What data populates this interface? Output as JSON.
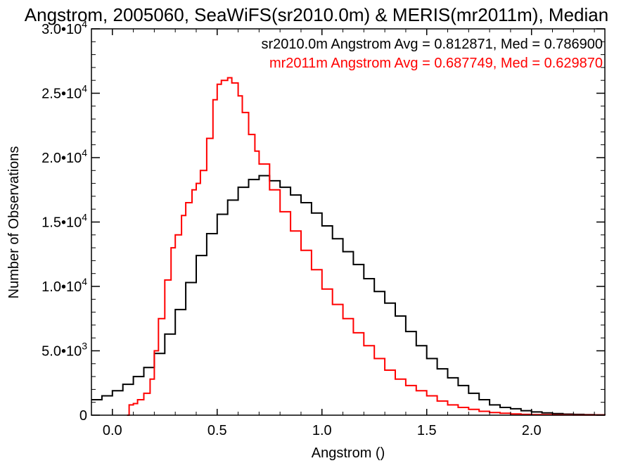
{
  "chart_data": {
    "type": "line",
    "title": "Angstrom, 2005060, SeaWiFS(sr2010.0m) & MERIS(mr2011m), Median",
    "xlabel": "Angstrom ()",
    "ylabel": "Number of Observations",
    "xlim": [
      -0.1,
      2.35
    ],
    "ylim": [
      0,
      30000
    ],
    "x_ticks": [
      {
        "value": 0.0,
        "label": "0.0"
      },
      {
        "value": 0.5,
        "label": "0.5"
      },
      {
        "value": 1.0,
        "label": "1.0"
      },
      {
        "value": 1.5,
        "label": "1.5"
      },
      {
        "value": 2.0,
        "label": "2.0"
      }
    ],
    "y_ticks": [
      {
        "value": 0,
        "mantissa": "0",
        "exponent": ""
      },
      {
        "value": 5000,
        "mantissa": "5.0•10",
        "exponent": "3"
      },
      {
        "value": 10000,
        "mantissa": "1.0•10",
        "exponent": "4"
      },
      {
        "value": 15000,
        "mantissa": "1.5•10",
        "exponent": "4"
      },
      {
        "value": 20000,
        "mantissa": "2.0•10",
        "exponent": "4"
      },
      {
        "value": 25000,
        "mantissa": "2.5•10",
        "exponent": "4"
      },
      {
        "value": 30000,
        "mantissa": "3.0•10",
        "exponent": "4"
      }
    ],
    "grid": false,
    "legend_position": "top-right",
    "series": [
      {
        "name": "sr2010.0m",
        "legend_text": "sr2010.0m Angstrom Avg = 0.812871, Med = 0.786900",
        "color": "#000000",
        "points": [
          [
            -0.1,
            1200
          ],
          [
            -0.05,
            1500
          ],
          [
            0.0,
            1900
          ],
          [
            0.05,
            2400
          ],
          [
            0.1,
            3000
          ],
          [
            0.15,
            3700
          ],
          [
            0.2,
            4800
          ],
          [
            0.25,
            6300
          ],
          [
            0.3,
            8200
          ],
          [
            0.35,
            10300
          ],
          [
            0.4,
            12400
          ],
          [
            0.45,
            14100
          ],
          [
            0.5,
            15600
          ],
          [
            0.55,
            16700
          ],
          [
            0.6,
            17700
          ],
          [
            0.65,
            18300
          ],
          [
            0.7,
            18600
          ],
          [
            0.75,
            18200
          ],
          [
            0.8,
            17700
          ],
          [
            0.85,
            17100
          ],
          [
            0.9,
            16500
          ],
          [
            0.95,
            15700
          ],
          [
            1.0,
            14700
          ],
          [
            1.05,
            13700
          ],
          [
            1.1,
            12700
          ],
          [
            1.15,
            11700
          ],
          [
            1.2,
            10600
          ],
          [
            1.25,
            9600
          ],
          [
            1.3,
            8700
          ],
          [
            1.35,
            7700
          ],
          [
            1.4,
            6500
          ],
          [
            1.45,
            5400
          ],
          [
            1.5,
            4400
          ],
          [
            1.55,
            3600
          ],
          [
            1.6,
            2900
          ],
          [
            1.65,
            2300
          ],
          [
            1.7,
            1700
          ],
          [
            1.75,
            1200
          ],
          [
            1.8,
            800
          ],
          [
            1.85,
            600
          ],
          [
            1.9,
            500
          ],
          [
            1.95,
            350
          ],
          [
            2.0,
            250
          ],
          [
            2.05,
            180
          ],
          [
            2.1,
            120
          ],
          [
            2.15,
            80
          ],
          [
            2.2,
            60
          ],
          [
            2.25,
            40
          ],
          [
            2.3,
            30
          ],
          [
            2.35,
            20
          ]
        ]
      },
      {
        "name": "mr2011m",
        "legend_text": "mr2011m Angstrom Avg = 0.687749, Med = 0.629870",
        "color": "#ff0000",
        "points": [
          [
            0.07,
            0
          ],
          [
            0.08,
            800
          ],
          [
            0.1,
            900
          ],
          [
            0.12,
            1200
          ],
          [
            0.15,
            1700
          ],
          [
            0.18,
            2800
          ],
          [
            0.2,
            5000
          ],
          [
            0.22,
            7500
          ],
          [
            0.25,
            10500
          ],
          [
            0.28,
            13000
          ],
          [
            0.3,
            14000
          ],
          [
            0.33,
            15500
          ],
          [
            0.35,
            16500
          ],
          [
            0.38,
            17500
          ],
          [
            0.4,
            18000
          ],
          [
            0.42,
            19000
          ],
          [
            0.45,
            21500
          ],
          [
            0.48,
            24500
          ],
          [
            0.5,
            25700
          ],
          [
            0.52,
            26000
          ],
          [
            0.55,
            26200
          ],
          [
            0.57,
            25800
          ],
          [
            0.6,
            24800
          ],
          [
            0.62,
            23500
          ],
          [
            0.65,
            21800
          ],
          [
            0.68,
            20500
          ],
          [
            0.7,
            19500
          ],
          [
            0.75,
            17500
          ],
          [
            0.8,
            15800
          ],
          [
            0.85,
            14300
          ],
          [
            0.9,
            12800
          ],
          [
            0.95,
            11300
          ],
          [
            1.0,
            9800
          ],
          [
            1.05,
            8600
          ],
          [
            1.1,
            7500
          ],
          [
            1.15,
            6400
          ],
          [
            1.2,
            5400
          ],
          [
            1.25,
            4400
          ],
          [
            1.3,
            3500
          ],
          [
            1.35,
            2800
          ],
          [
            1.4,
            2300
          ],
          [
            1.45,
            1900
          ],
          [
            1.5,
            1500
          ],
          [
            1.55,
            1100
          ],
          [
            1.6,
            800
          ],
          [
            1.65,
            600
          ],
          [
            1.7,
            450
          ],
          [
            1.75,
            300
          ],
          [
            1.8,
            200
          ],
          [
            1.85,
            150
          ],
          [
            1.9,
            100
          ],
          [
            1.95,
            60
          ],
          [
            2.0,
            40
          ],
          [
            2.1,
            20
          ],
          [
            2.2,
            10
          ],
          [
            2.35,
            5
          ]
        ]
      }
    ]
  }
}
